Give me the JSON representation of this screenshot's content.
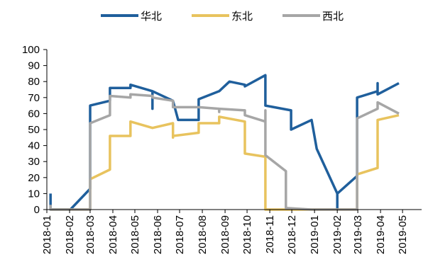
{
  "chart_data": {
    "type": "line",
    "title": "",
    "xlabel": "",
    "ylabel": "",
    "ylim": [
      0,
      100
    ],
    "yticks": [
      0,
      10,
      20,
      30,
      40,
      50,
      60,
      70,
      80,
      90,
      100
    ],
    "x_tick_labels": [
      "2018-01",
      "2018-02",
      "2018-03",
      "2018-04",
      "2018-05",
      "2018-06",
      "2018-07",
      "2018-08",
      "2018-09",
      "2018-10",
      "2018-11",
      "2018-12",
      "2019-01",
      "2019-02",
      "2019-03",
      "2019-04",
      "2019-05"
    ],
    "legend_position": "top-center",
    "grid": false,
    "series": [
      {
        "name": "华北",
        "color": "#1f5f9c",
        "points": [
          [
            "2018-01-06",
            10
          ],
          [
            "2018-01-06",
            0
          ],
          [
            "2018-02-02",
            0
          ],
          [
            "2018-03-01",
            13
          ],
          [
            "2018-03-01",
            65
          ],
          [
            "2018-03-28",
            68
          ],
          [
            "2018-03-28",
            76
          ],
          [
            "2018-04-25",
            76
          ],
          [
            "2018-04-25",
            78
          ],
          [
            "2018-05-25",
            74
          ],
          [
            "2018-05-25",
            63
          ],
          [
            "2018-05-25",
            74
          ],
          [
            "2018-06-22",
            68
          ],
          [
            "2018-06-29",
            56
          ],
          [
            "2018-07-27",
            56
          ],
          [
            "2018-07-27",
            69
          ],
          [
            "2018-08-24",
            74
          ],
          [
            "2018-09-07",
            80
          ],
          [
            "2018-09-28",
            78
          ],
          [
            "2018-09-28",
            77
          ],
          [
            "2018-10-26",
            84
          ],
          [
            "2018-10-26",
            65
          ],
          [
            "2018-11-30",
            62
          ],
          [
            "2018-11-30",
            50
          ],
          [
            "2018-12-28",
            56
          ],
          [
            "2019-01-04",
            38
          ],
          [
            "2019-02-01",
            10
          ],
          [
            "2019-02-01",
            0
          ],
          [
            "2019-02-01",
            10
          ],
          [
            "2019-02-28",
            21
          ],
          [
            "2019-02-28",
            70
          ],
          [
            "2019-03-28",
            74
          ],
          [
            "2019-03-28",
            79
          ],
          [
            "2019-03-28",
            72
          ],
          [
            "2019-04-26",
            79
          ]
        ]
      },
      {
        "name": "东北",
        "color": "#e8c35e",
        "points": [
          [
            "2018-01-06",
            0
          ],
          [
            "2018-03-01",
            0
          ],
          [
            "2018-03-01",
            19
          ],
          [
            "2018-03-28",
            25
          ],
          [
            "2018-03-28",
            46
          ],
          [
            "2018-04-25",
            46
          ],
          [
            "2018-04-25",
            55
          ],
          [
            "2018-05-25",
            51
          ],
          [
            "2018-06-22",
            54
          ],
          [
            "2018-06-22",
            45
          ],
          [
            "2018-06-22",
            46
          ],
          [
            "2018-07-27",
            48
          ],
          [
            "2018-07-27",
            54
          ],
          [
            "2018-08-24",
            54
          ],
          [
            "2018-08-24",
            58
          ],
          [
            "2018-09-28",
            55
          ],
          [
            "2018-09-28",
            35
          ],
          [
            "2018-10-26",
            33
          ],
          [
            "2018-10-26",
            0
          ],
          [
            "2019-02-28",
            0
          ],
          [
            "2019-02-28",
            22
          ],
          [
            "2019-03-28",
            26
          ],
          [
            "2019-03-28",
            56
          ],
          [
            "2019-04-26",
            59
          ]
        ]
      },
      {
        "name": "西北",
        "color": "#a6a6a6",
        "points": [
          [
            "2018-01-06",
            3
          ],
          [
            "2018-01-06",
            0
          ],
          [
            "2018-03-01",
            0
          ],
          [
            "2018-03-01",
            54
          ],
          [
            "2018-03-28",
            59
          ],
          [
            "2018-03-28",
            71
          ],
          [
            "2018-04-25",
            70
          ],
          [
            "2018-04-25",
            72
          ],
          [
            "2018-05-25",
            71
          ],
          [
            "2018-05-25",
            70
          ],
          [
            "2018-06-22",
            68
          ],
          [
            "2018-06-22",
            64
          ],
          [
            "2018-07-27",
            64
          ],
          [
            "2018-08-24",
            63
          ],
          [
            "2018-08-24",
            61
          ],
          [
            "2018-08-24",
            63
          ],
          [
            "2018-09-28",
            62
          ],
          [
            "2018-09-28",
            59
          ],
          [
            "2018-10-26",
            55
          ],
          [
            "2018-10-26",
            62
          ],
          [
            "2018-10-26",
            34
          ],
          [
            "2018-11-23",
            24
          ],
          [
            "2018-11-23",
            1
          ],
          [
            "2018-12-28",
            0
          ],
          [
            "2019-02-28",
            0
          ],
          [
            "2019-02-28",
            57
          ],
          [
            "2019-03-28",
            63
          ],
          [
            "2019-03-28",
            67
          ],
          [
            "2019-04-26",
            60
          ]
        ]
      }
    ]
  }
}
